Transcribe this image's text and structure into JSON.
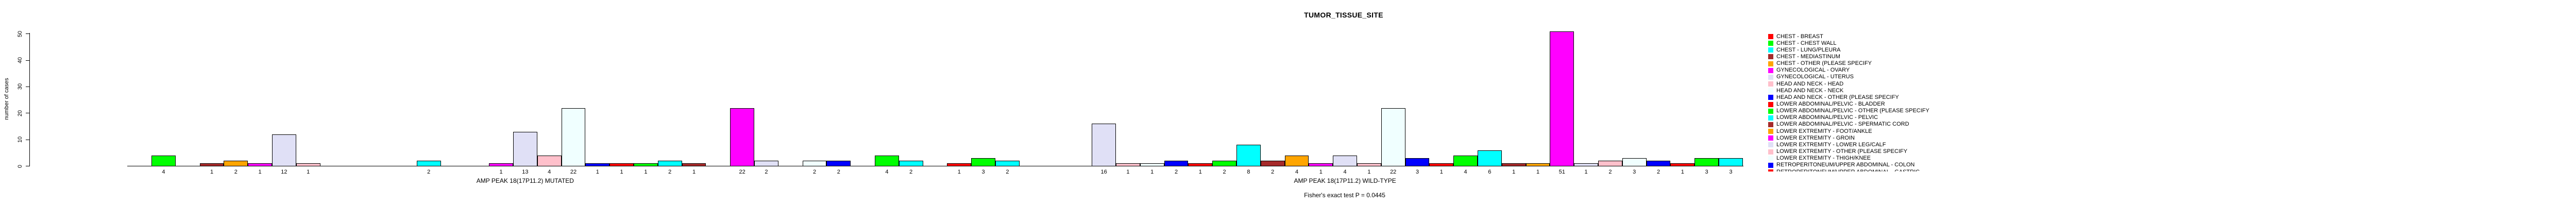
{
  "figure": {
    "title": "TUMOR_TISSUE_SITE"
  },
  "chart_data": {
    "type": "bar",
    "title": "TUMOR_TISSUE_SITE",
    "ylabel": "number of cases",
    "ylim": [
      0,
      50
    ],
    "yticks": [
      0,
      10,
      20,
      30,
      40,
      50
    ],
    "grid": false,
    "legend_position": "right",
    "footnote": "Fisher's exact test P = 0.0445",
    "palette_cycle": [
      "#FF0000",
      "#00FF00",
      "#00FFFF",
      "#A52A2A",
      "#FFA500",
      "#FF00FF",
      "#E0E0F6",
      "#FFC0CB",
      "#F0FFFF",
      "#0000FF"
    ],
    "groups": [
      {
        "label": "AMP PEAK 18(17P11.2) MUTATED",
        "values": [
          0,
          4,
          0,
          1,
          2,
          1,
          12,
          1,
          0,
          0,
          0,
          0,
          2,
          0,
          0,
          1,
          13,
          4,
          22,
          1,
          1,
          1,
          2,
          1,
          0,
          22,
          2,
          0,
          2,
          2,
          0,
          4,
          2
        ]
      },
      {
        "label": "AMP PEAK 18(17P11.2) WILD-TYPE",
        "values": [
          1,
          3,
          2,
          0,
          0,
          0,
          16,
          1,
          1,
          2,
          1,
          2,
          8,
          2,
          4,
          1,
          4,
          1,
          22,
          3,
          1,
          4,
          6,
          1,
          1,
          51,
          1,
          2,
          3,
          2,
          1,
          3,
          3
        ]
      }
    ],
    "legend": [
      {
        "label": "CHEST - BREAST",
        "color": "#FF0000"
      },
      {
        "label": "CHEST - CHEST WALL",
        "color": "#00FF00"
      },
      {
        "label": "CHEST - LUNG/PLEURA",
        "color": "#00FFFF"
      },
      {
        "label": "CHEST - MEDIASTINUM",
        "color": "#A52A2A"
      },
      {
        "label": "CHEST - OTHER (PLEASE SPECIFY",
        "color": "#FFA500"
      },
      {
        "label": "GYNECOLOGICAL - OVARY",
        "color": "#FF00FF"
      },
      {
        "label": "GYNECOLOGICAL - UTERUS",
        "color": "#E0E0F6"
      },
      {
        "label": "HEAD AND NECK - HEAD",
        "color": "#FFC0CB"
      },
      {
        "label": "HEAD AND NECK - NECK",
        "color": "#F0FFFF"
      },
      {
        "label": "HEAD AND NECK - OTHER (PLEASE SPECIFY",
        "color": "#0000FF"
      },
      {
        "label": "LOWER ABDOMINAL/PELVIC - BLADDER",
        "color": "#FF0000"
      },
      {
        "label": "LOWER ABDOMINAL/PELVIC - OTHER (PLEASE SPECIFY",
        "color": "#00FF00"
      },
      {
        "label": "LOWER ABDOMINAL/PELVIC - PELVIC",
        "color": "#00FFFF"
      },
      {
        "label": "LOWER ABDOMINAL/PELVIC - SPERMATIC CORD",
        "color": "#A52A2A"
      },
      {
        "label": "LOWER EXTREMITY - FOOT/ANKLE",
        "color": "#FFA500"
      },
      {
        "label": "LOWER EXTREMITY - GROIN",
        "color": "#FF00FF"
      },
      {
        "label": "LOWER EXTREMITY - LOWER LEG/CALF",
        "color": "#E0E0F6"
      },
      {
        "label": "LOWER EXTREMITY - OTHER (PLEASE SPECIFY",
        "color": "#FFC0CB"
      },
      {
        "label": "LOWER EXTREMITY - THIGH/KNEE",
        "color": "#F0FFFF"
      },
      {
        "label": "RETROPERITONEUM/UPPER ABDOMINAL - COLON",
        "color": "#0000FF"
      },
      {
        "label": "RETROPERITONEUM/UPPER ABDOMINAL - GASTRIC",
        "color": "#FF0000",
        "clipped": true
      }
    ]
  }
}
